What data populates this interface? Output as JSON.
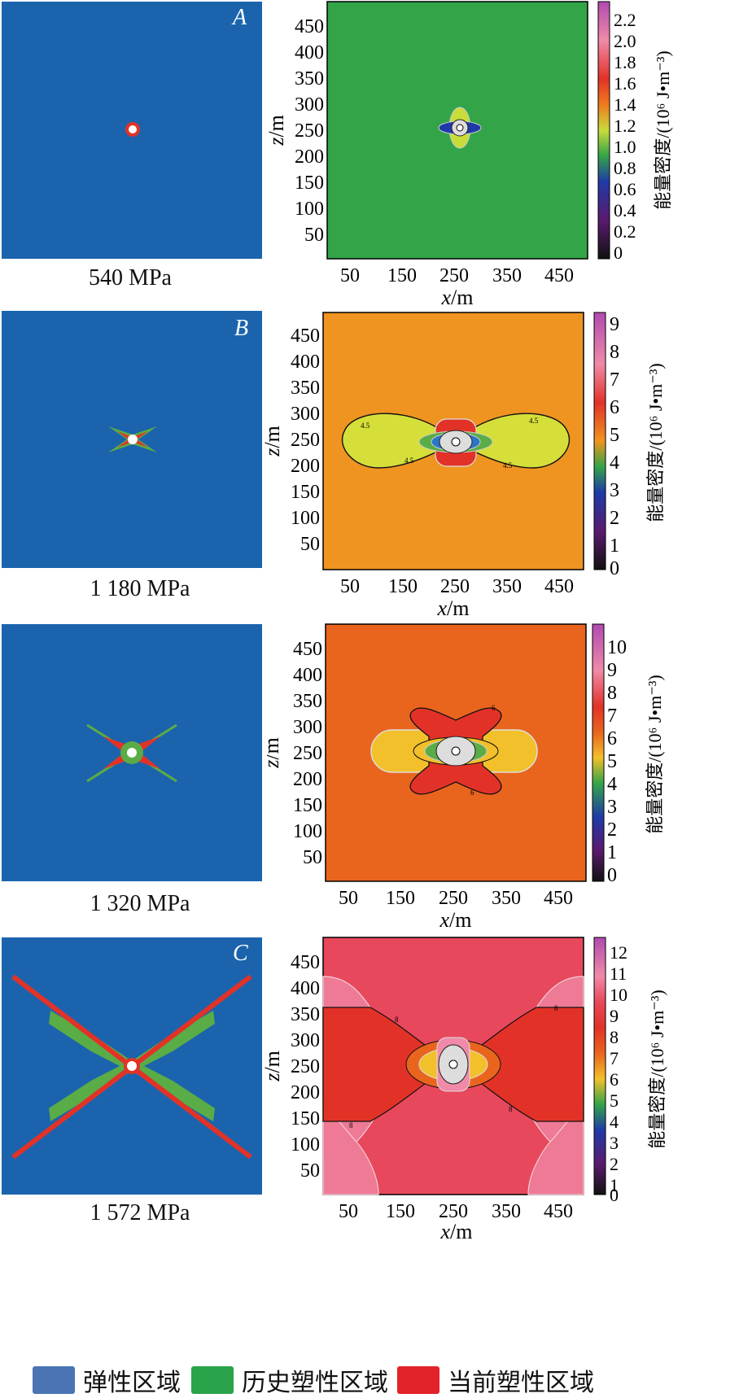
{
  "colors": {
    "elastic": "#1b64ad",
    "history_plastic": "#5aac46",
    "current_plastic": "#e23228",
    "legend_elastic": "#4a74b4",
    "legend_history": "#2aa34a",
    "legend_current": "#e3232a"
  },
  "axes": {
    "xlabel_var": "x",
    "xlabel_unit": "/m",
    "ylabel_var": "z",
    "ylabel_unit": "/m",
    "colorbar_label": "能量密度/(10⁶ J•m⁻³)",
    "xticks": [
      "50",
      "150",
      "250",
      "350",
      "450"
    ],
    "yticks": [
      "450",
      "400",
      "350",
      "300",
      "250",
      "200",
      "150",
      "100",
      "50"
    ]
  },
  "panels": [
    {
      "letter": "A",
      "pressure": "540 MPa",
      "field_color": "#33a448",
      "colorbar_ticks": [
        "2.2",
        "2.0",
        "1.8",
        "1.6",
        "1.4",
        "1.2",
        "1.0",
        "0.8",
        "0.6",
        "0.4",
        "0.2",
        "0"
      ],
      "contour_labels": []
    },
    {
      "letter": "B",
      "pressure": "1 180 MPa",
      "field_color": "#ef9420",
      "colorbar_ticks": [
        "9",
        "8",
        "7",
        "6",
        "5",
        "4",
        "3",
        "2",
        "1",
        "0"
      ],
      "contour_labels": [
        "4.5",
        "4.5",
        "4.5",
        "4.5"
      ]
    },
    {
      "letter": "",
      "pressure": "1 320 MPa",
      "field_color": "#e9651e",
      "colorbar_ticks": [
        "10",
        "9",
        "8",
        "7",
        "6",
        "5",
        "4",
        "3",
        "2",
        "1",
        "0"
      ],
      "contour_labels": [
        "6",
        "6"
      ]
    },
    {
      "letter": "C",
      "pressure": "1 572 MPa",
      "field_color": "#e8485c",
      "colorbar_ticks": [
        "12",
        "11",
        "10",
        "9",
        "8",
        "7",
        "6",
        "5",
        "4",
        "3",
        "2",
        "1",
        "0"
      ],
      "contour_labels": [
        "8",
        "8",
        "8",
        "8"
      ]
    }
  ],
  "legend": [
    {
      "label": "弹性区域"
    },
    {
      "label": "历史塑性区域"
    },
    {
      "label": "当前塑性区域"
    }
  ]
}
